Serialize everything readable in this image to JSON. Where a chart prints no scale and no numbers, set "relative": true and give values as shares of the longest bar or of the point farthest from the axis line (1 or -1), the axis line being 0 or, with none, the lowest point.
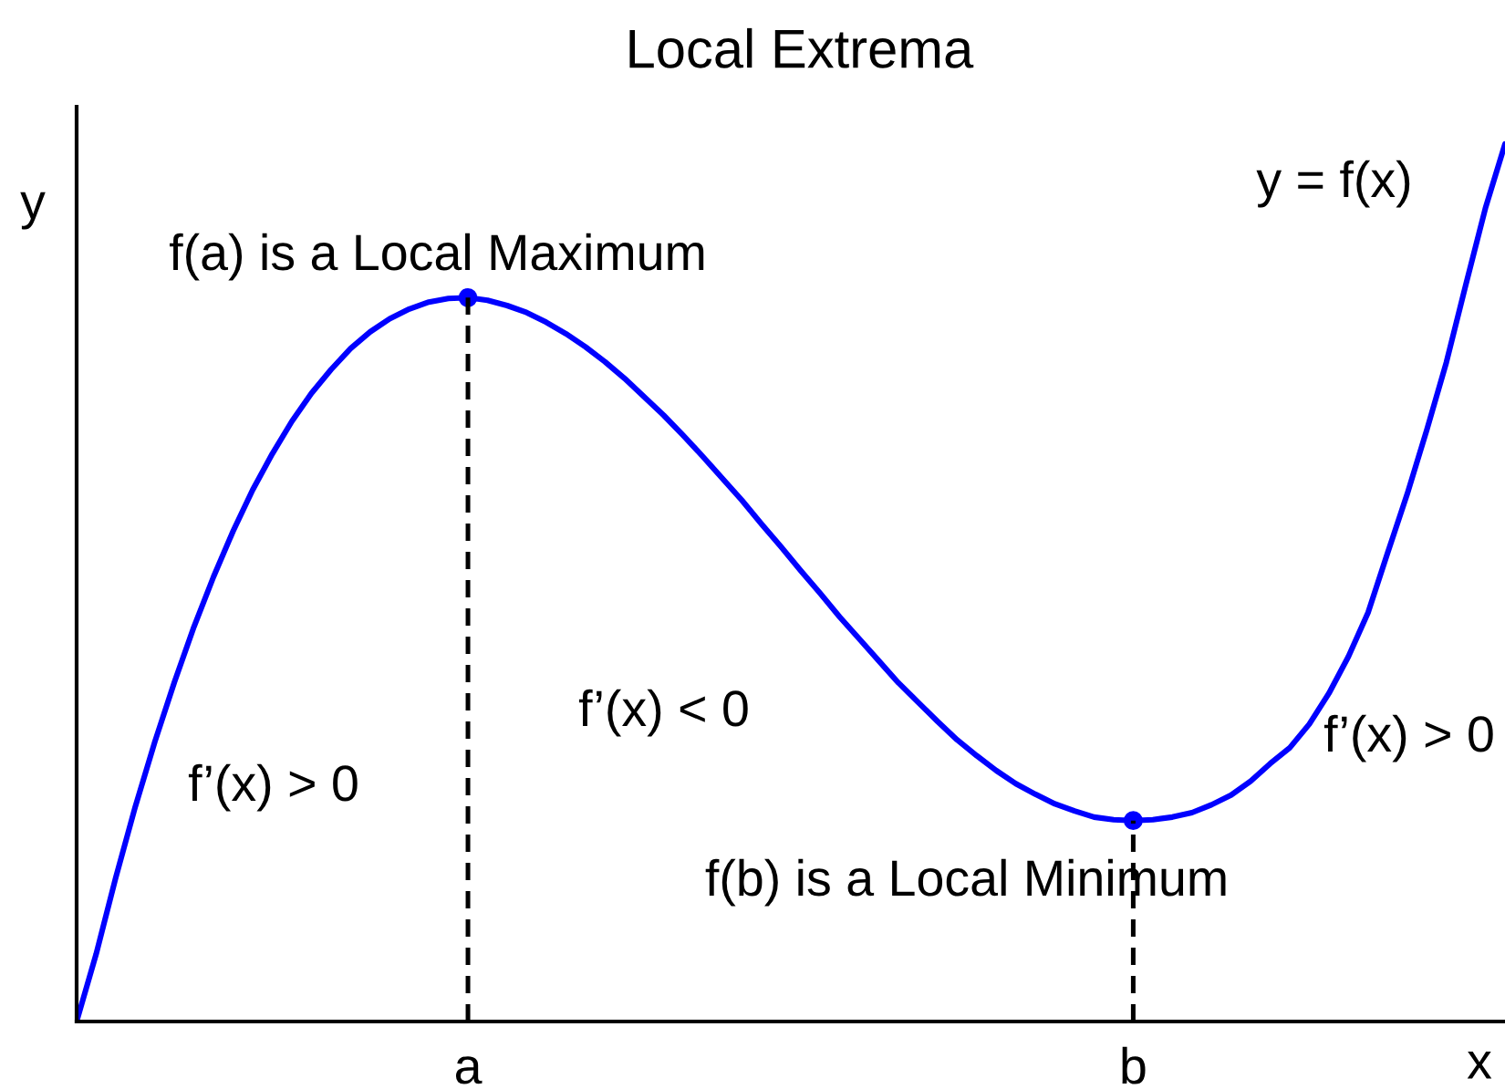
{
  "chart_data": {
    "type": "line",
    "title": "Local Extrema",
    "xlabel": "x",
    "ylabel": "y",
    "relative": true,
    "categories": [
      null,
      null,
      null,
      null,
      null,
      null,
      null,
      null,
      null,
      null,
      null,
      null,
      null,
      null,
      null,
      null,
      null,
      null,
      null,
      null,
      "a",
      null,
      null,
      null,
      null,
      null,
      null,
      null,
      null,
      null,
      null,
      null,
      null,
      null,
      null,
      null,
      null,
      null,
      null,
      null,
      null,
      null,
      null,
      null,
      null,
      null,
      null,
      null,
      null,
      null,
      null,
      null,
      null,
      null,
      "b",
      null,
      null,
      null,
      null,
      null,
      null,
      null,
      null,
      null,
      null,
      null,
      null,
      null,
      null,
      null,
      null,
      null,
      null,
      null
    ],
    "series": [
      {
        "color": "#0000ff",
        "line_style": "solid",
        "marker": "none",
        "values": [
          0,
          0.077,
          0.164,
          0.245,
          0.319,
          0.387,
          0.45,
          0.507,
          0.559,
          0.606,
          0.647,
          0.684,
          0.716,
          0.743,
          0.767,
          0.786,
          0.801,
          0.812,
          0.82,
          0.824,
          0.825,
          0.822,
          0.816,
          0.808,
          0.797,
          0.784,
          0.769,
          0.752,
          0.733,
          0.712,
          0.691,
          0.668,
          0.644,
          0.619,
          0.594,
          0.567,
          0.541,
          0.514,
          0.488,
          0.461,
          0.436,
          0.411,
          0.386,
          0.364,
          0.342,
          0.321,
          0.303,
          0.286,
          0.271,
          0.259,
          0.248,
          0.24,
          0.233,
          0.23,
          0.229,
          0.23,
          0.233,
          0.238,
          0.247,
          0.258,
          0.274,
          0.294,
          0.312,
          0.339,
          0.374,
          0.416,
          0.466,
          0.534,
          0.601,
          0.674,
          0.751,
          0.84,
          0.927,
          1
        ]
      },
      {
        "type": "lollipop",
        "color": "#0000ff",
        "line_style": "dashed",
        "marker": "circle",
        "values": [
          null,
          null,
          null,
          null,
          null,
          null,
          null,
          null,
          null,
          null,
          null,
          null,
          null,
          null,
          null,
          null,
          null,
          null,
          null,
          null,
          0.825,
          null,
          null,
          null,
          null,
          null,
          null,
          null,
          null,
          null,
          null,
          null,
          null,
          null,
          null,
          null,
          null,
          null,
          null,
          null,
          null,
          null,
          null,
          null,
          null,
          null,
          null,
          null,
          null,
          null,
          null,
          null,
          null,
          null,
          0.229,
          null,
          null,
          null,
          null,
          null,
          null,
          null,
          null,
          null,
          null,
          null,
          null,
          null,
          null,
          null,
          null,
          null,
          null,
          null
        ]
      }
    ],
    "annotations": [
      "y = f(x)",
      "f(a) is a Local Maximum",
      "f’(x) < 0",
      "f’(x) > 0",
      "f’(x) > 0",
      "f(b) is a Local Minimum"
    ]
  }
}
